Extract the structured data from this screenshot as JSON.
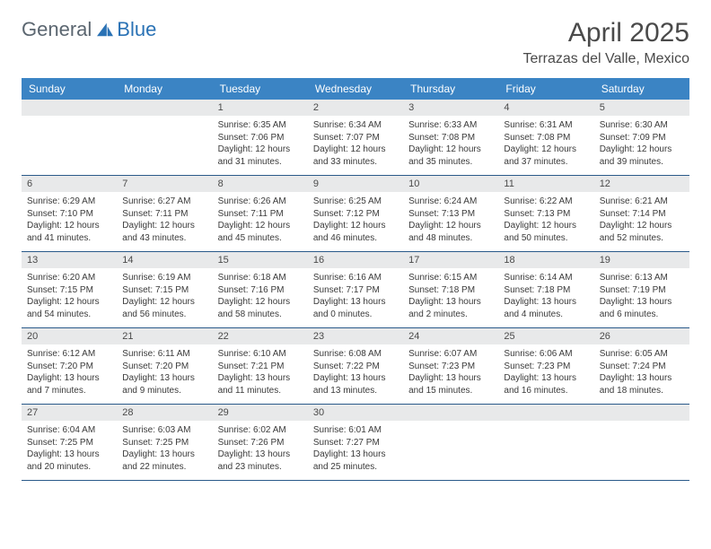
{
  "brand": {
    "part1": "General",
    "part2": "Blue"
  },
  "title": "April 2025",
  "location": "Terrazas del Valle, Mexico",
  "colors": {
    "header_bg": "#3b84c4",
    "header_text": "#ffffff",
    "daynum_bg": "#e8e9ea",
    "row_border": "#2a5a8a",
    "brand_gray": "#5b6670",
    "brand_blue": "#2a72b5"
  },
  "weekdays": [
    "Sunday",
    "Monday",
    "Tuesday",
    "Wednesday",
    "Thursday",
    "Friday",
    "Saturday"
  ],
  "weeks": [
    [
      null,
      null,
      {
        "n": "1",
        "sr": "6:35 AM",
        "ss": "7:06 PM",
        "dl": "12 hours and 31 minutes."
      },
      {
        "n": "2",
        "sr": "6:34 AM",
        "ss": "7:07 PM",
        "dl": "12 hours and 33 minutes."
      },
      {
        "n": "3",
        "sr": "6:33 AM",
        "ss": "7:08 PM",
        "dl": "12 hours and 35 minutes."
      },
      {
        "n": "4",
        "sr": "6:31 AM",
        "ss": "7:08 PM",
        "dl": "12 hours and 37 minutes."
      },
      {
        "n": "5",
        "sr": "6:30 AM",
        "ss": "7:09 PM",
        "dl": "12 hours and 39 minutes."
      }
    ],
    [
      {
        "n": "6",
        "sr": "6:29 AM",
        "ss": "7:10 PM",
        "dl": "12 hours and 41 minutes."
      },
      {
        "n": "7",
        "sr": "6:27 AM",
        "ss": "7:11 PM",
        "dl": "12 hours and 43 minutes."
      },
      {
        "n": "8",
        "sr": "6:26 AM",
        "ss": "7:11 PM",
        "dl": "12 hours and 45 minutes."
      },
      {
        "n": "9",
        "sr": "6:25 AM",
        "ss": "7:12 PM",
        "dl": "12 hours and 46 minutes."
      },
      {
        "n": "10",
        "sr": "6:24 AM",
        "ss": "7:13 PM",
        "dl": "12 hours and 48 minutes."
      },
      {
        "n": "11",
        "sr": "6:22 AM",
        "ss": "7:13 PM",
        "dl": "12 hours and 50 minutes."
      },
      {
        "n": "12",
        "sr": "6:21 AM",
        "ss": "7:14 PM",
        "dl": "12 hours and 52 minutes."
      }
    ],
    [
      {
        "n": "13",
        "sr": "6:20 AM",
        "ss": "7:15 PM",
        "dl": "12 hours and 54 minutes."
      },
      {
        "n": "14",
        "sr": "6:19 AM",
        "ss": "7:15 PM",
        "dl": "12 hours and 56 minutes."
      },
      {
        "n": "15",
        "sr": "6:18 AM",
        "ss": "7:16 PM",
        "dl": "12 hours and 58 minutes."
      },
      {
        "n": "16",
        "sr": "6:16 AM",
        "ss": "7:17 PM",
        "dl": "13 hours and 0 minutes."
      },
      {
        "n": "17",
        "sr": "6:15 AM",
        "ss": "7:18 PM",
        "dl": "13 hours and 2 minutes."
      },
      {
        "n": "18",
        "sr": "6:14 AM",
        "ss": "7:18 PM",
        "dl": "13 hours and 4 minutes."
      },
      {
        "n": "19",
        "sr": "6:13 AM",
        "ss": "7:19 PM",
        "dl": "13 hours and 6 minutes."
      }
    ],
    [
      {
        "n": "20",
        "sr": "6:12 AM",
        "ss": "7:20 PM",
        "dl": "13 hours and 7 minutes."
      },
      {
        "n": "21",
        "sr": "6:11 AM",
        "ss": "7:20 PM",
        "dl": "13 hours and 9 minutes."
      },
      {
        "n": "22",
        "sr": "6:10 AM",
        "ss": "7:21 PM",
        "dl": "13 hours and 11 minutes."
      },
      {
        "n": "23",
        "sr": "6:08 AM",
        "ss": "7:22 PM",
        "dl": "13 hours and 13 minutes."
      },
      {
        "n": "24",
        "sr": "6:07 AM",
        "ss": "7:23 PM",
        "dl": "13 hours and 15 minutes."
      },
      {
        "n": "25",
        "sr": "6:06 AM",
        "ss": "7:23 PM",
        "dl": "13 hours and 16 minutes."
      },
      {
        "n": "26",
        "sr": "6:05 AM",
        "ss": "7:24 PM",
        "dl": "13 hours and 18 minutes."
      }
    ],
    [
      {
        "n": "27",
        "sr": "6:04 AM",
        "ss": "7:25 PM",
        "dl": "13 hours and 20 minutes."
      },
      {
        "n": "28",
        "sr": "6:03 AM",
        "ss": "7:25 PM",
        "dl": "13 hours and 22 minutes."
      },
      {
        "n": "29",
        "sr": "6:02 AM",
        "ss": "7:26 PM",
        "dl": "13 hours and 23 minutes."
      },
      {
        "n": "30",
        "sr": "6:01 AM",
        "ss": "7:27 PM",
        "dl": "13 hours and 25 minutes."
      },
      null,
      null,
      null
    ]
  ],
  "labels": {
    "sunrise": "Sunrise:",
    "sunset": "Sunset:",
    "daylight": "Daylight:"
  }
}
